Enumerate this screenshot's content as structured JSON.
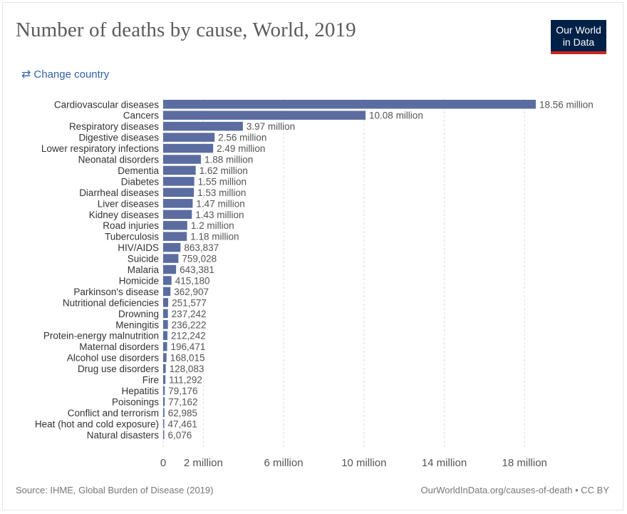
{
  "header": {
    "title": "Number of deaths by cause, World, 2019",
    "logo_line1": "Our World",
    "logo_line2": "in Data",
    "change_country_icon": "swap-arrows-icon",
    "change_country_label": "Change country"
  },
  "footer": {
    "source": "Source: IHME, Global Burden of Disease (2019)",
    "link": "OurWorldInData.org/causes-of-death",
    "separator": "•",
    "license": "CC BY"
  },
  "colors": {
    "bar": "#5b6da0",
    "grid": "#dddddd",
    "label": "#333333",
    "value": "#555555"
  },
  "chart_data": {
    "type": "bar",
    "orientation": "horizontal",
    "title": "Number of deaths by cause, World, 2019",
    "xlabel": "",
    "ylabel": "",
    "xlim": [
      0,
      18560000
    ],
    "grid": true,
    "x_ticks": [
      {
        "value": 0,
        "label": "0"
      },
      {
        "value": 2000000,
        "label": "2 million"
      },
      {
        "value": 6000000,
        "label": "6 million"
      },
      {
        "value": 10000000,
        "label": "10 million"
      },
      {
        "value": 14000000,
        "label": "14 million"
      },
      {
        "value": 18000000,
        "label": "18 million"
      }
    ],
    "categories": [
      "Cardiovascular diseases",
      "Cancers",
      "Respiratory diseases",
      "Digestive diseases",
      "Lower respiratory infections",
      "Neonatal disorders",
      "Dementia",
      "Diabetes",
      "Diarrheal diseases",
      "Liver diseases",
      "Kidney diseases",
      "Road injuries",
      "Tuberculosis",
      "HIV/AIDS",
      "Suicide",
      "Malaria",
      "Homicide",
      "Parkinson's disease",
      "Nutritional deficiencies",
      "Drowning",
      "Meningitis",
      "Protein-energy malnutrition",
      "Maternal disorders",
      "Alcohol use disorders",
      "Drug use disorders",
      "Fire",
      "Hepatitis",
      "Poisonings",
      "Conflict and terrorism",
      "Heat (hot and cold exposure)",
      "Natural disasters"
    ],
    "values": [
      18560000,
      10080000,
      3970000,
      2560000,
      2490000,
      1880000,
      1620000,
      1550000,
      1530000,
      1470000,
      1430000,
      1200000,
      1180000,
      863837,
      759028,
      643381,
      415180,
      362907,
      251577,
      237242,
      236222,
      212242,
      196471,
      168015,
      128083,
      111292,
      79176,
      77162,
      62985,
      47461,
      6076
    ],
    "value_labels": [
      "18.56 million",
      "10.08 million",
      "3.97 million",
      "2.56 million",
      "2.49 million",
      "1.88 million",
      "1.62 million",
      "1.55 million",
      "1.53 million",
      "1.47 million",
      "1.43 million",
      "1.2 million",
      "1.18 million",
      "863,837",
      "759,028",
      "643,381",
      "415,180",
      "362,907",
      "251,577",
      "237,242",
      "236,222",
      "212,242",
      "196,471",
      "168,015",
      "128,083",
      "111,292",
      "79,176",
      "77,162",
      "62,985",
      "47,461",
      "6,076"
    ]
  }
}
